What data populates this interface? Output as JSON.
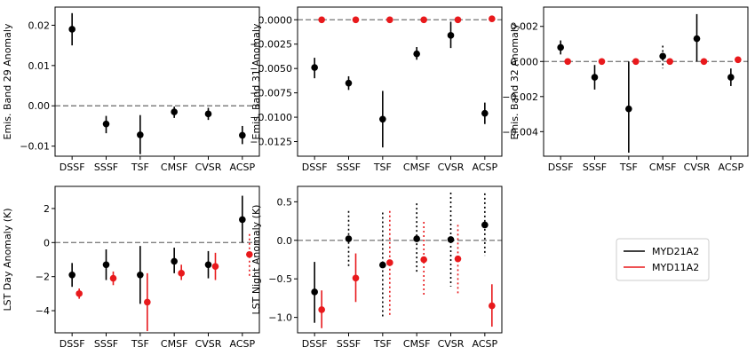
{
  "chart_data": [
    {
      "type": "scatter",
      "title": "",
      "xlabel": "",
      "ylabel": "Emis. Band 29 Anomaly",
      "categories": [
        "DSSF",
        "SSSF",
        "TSF",
        "CMSF",
        "CVSR",
        "ACSP"
      ],
      "ylim": [
        -0.0125,
        0.0245
      ],
      "yticks": [
        -0.01,
        0.0,
        0.01,
        0.02
      ],
      "ytick_labels": [
        "−0.01",
        "0.00",
        "0.01",
        "0.02"
      ],
      "zero_line": true,
      "series": [
        {
          "color": "#000000",
          "points": [
            {
              "value": 0.019,
              "low": 0.015,
              "high": 0.023,
              "dotted": false
            },
            {
              "value": -0.0045,
              "low": -0.0068,
              "high": -0.0025,
              "dotted": false
            },
            {
              "value": -0.0072,
              "low": -0.012,
              "high": -0.0023,
              "dotted": false
            },
            {
              "value": -0.0015,
              "low": -0.003,
              "high": -0.0002,
              "dotted": false
            },
            {
              "value": -0.002,
              "low": -0.0035,
              "high": -0.0005,
              "dotted": false
            },
            {
              "value": -0.0073,
              "low": -0.0095,
              "high": -0.005,
              "dotted": false
            }
          ]
        }
      ]
    },
    {
      "type": "scatter",
      "title": "",
      "xlabel": "",
      "ylabel": "Emis. Band 31 Anomaly",
      "categories": [
        "DSSF",
        "SSSF",
        "TSF",
        "CMSF",
        "CVSR",
        "ACSP"
      ],
      "ylim": [
        -0.014,
        0.0013
      ],
      "yticks": [
        0.0,
        -0.0025,
        -0.005,
        -0.0075,
        -0.01,
        -0.0125
      ],
      "ytick_labels": [
        "0.0000",
        "−0.0025",
        "−0.0050",
        "−0.0075",
        "−0.0100",
        "−0.0125"
      ],
      "zero_line": true,
      "series": [
        {
          "color": "#000000",
          "points": [
            {
              "value": -0.0049,
              "low": -0.006,
              "high": -0.0039,
              "dotted": false
            },
            {
              "value": -0.0065,
              "low": -0.0072,
              "high": -0.0058,
              "dotted": false
            },
            {
              "value": -0.0102,
              "low": -0.0131,
              "high": -0.0073,
              "dotted": false
            },
            {
              "value": -0.0035,
              "low": -0.0041,
              "high": -0.0028,
              "dotted": false
            },
            {
              "value": -0.0016,
              "low": -0.0029,
              "high": -0.0002,
              "dotted": false
            },
            {
              "value": -0.0096,
              "low": -0.0107,
              "high": -0.0085,
              "dotted": false
            }
          ]
        },
        {
          "color": "#e8191c",
          "points": [
            {
              "value": 0.0,
              "low": 0.0,
              "high": 0.0,
              "dotted": false
            },
            {
              "value": 0.0,
              "low": 0.0,
              "high": 0.0,
              "dotted": false
            },
            {
              "value": 0.0,
              "low": 0.0,
              "high": 0.0,
              "dotted": false
            },
            {
              "value": 0.0,
              "low": 0.0,
              "high": 0.0,
              "dotted": false
            },
            {
              "value": 0.0,
              "low": 0.0,
              "high": 0.0,
              "dotted": false
            },
            {
              "value": 0.0001,
              "low": 0.0001,
              "high": 0.0001,
              "dotted": false
            }
          ]
        }
      ]
    },
    {
      "type": "scatter",
      "title": "",
      "xlabel": "",
      "ylabel": "Emis. Band 32 Anomaly",
      "categories": [
        "DSSF",
        "SSSF",
        "TSF",
        "CMSF",
        "CVSR",
        "ACSP"
      ],
      "ylim": [
        -0.0054,
        0.0031
      ],
      "yticks": [
        0.002,
        0.0,
        -0.002,
        -0.004
      ],
      "ytick_labels": [
        "0.002",
        "0.000",
        "−0.002",
        "−0.004"
      ],
      "zero_line": true,
      "series": [
        {
          "color": "#000000",
          "points": [
            {
              "value": 0.0008,
              "low": 0.0004,
              "high": 0.0012,
              "dotted": false
            },
            {
              "value": -0.0009,
              "low": -0.0016,
              "high": -0.0002,
              "dotted": false
            },
            {
              "value": -0.0027,
              "low": -0.0052,
              "high": 0.0,
              "dotted": false
            },
            {
              "value": 0.0003,
              "low": -0.0004,
              "high": 0.0009,
              "dotted": true
            },
            {
              "value": 0.0013,
              "low": 0.0,
              "high": 0.0027,
              "dotted": false
            },
            {
              "value": -0.0009,
              "low": -0.0014,
              "high": -0.0004,
              "dotted": false
            }
          ]
        },
        {
          "color": "#e8191c",
          "points": [
            {
              "value": 0.0,
              "low": 0.0,
              "high": 0.0,
              "dotted": false
            },
            {
              "value": 0.0,
              "low": 0.0,
              "high": 0.0,
              "dotted": false
            },
            {
              "value": 0.0,
              "low": 0.0,
              "high": 0.0,
              "dotted": false
            },
            {
              "value": 0.0,
              "low": 0.0,
              "high": 0.0,
              "dotted": false
            },
            {
              "value": 0.0,
              "low": 0.0,
              "high": 0.0,
              "dotted": false
            },
            {
              "value": 0.0001,
              "low": 0.0001,
              "high": 0.0001,
              "dotted": false
            }
          ]
        }
      ]
    },
    {
      "type": "scatter",
      "title": "",
      "xlabel": "",
      "ylabel": "LST Day Anomaly (K)",
      "categories": [
        "DSSF",
        "SSSF",
        "TSF",
        "CMSF",
        "CVSR",
        "ACSP"
      ],
      "ylim": [
        -5.3,
        3.3
      ],
      "yticks": [
        2,
        0,
        -2,
        -4
      ],
      "ytick_labels": [
        "2",
        "0",
        "−2",
        "−4"
      ],
      "zero_line": true,
      "series": [
        {
          "color": "#000000",
          "points": [
            {
              "value": -1.9,
              "low": -2.6,
              "high": -1.2,
              "dotted": false
            },
            {
              "value": -1.3,
              "low": -2.2,
              "high": -0.4,
              "dotted": false
            },
            {
              "value": -1.9,
              "low": -3.6,
              "high": -0.2,
              "dotted": false
            },
            {
              "value": -1.1,
              "low": -1.8,
              "high": -0.3,
              "dotted": false
            },
            {
              "value": -1.3,
              "low": -2.1,
              "high": -0.5,
              "dotted": false
            },
            {
              "value": 1.35,
              "low": 0.0,
              "high": 2.75,
              "dotted": false
            }
          ]
        },
        {
          "color": "#e8191c",
          "points": [
            {
              "value": -3.0,
              "low": -3.3,
              "high": -2.7,
              "dotted": false
            },
            {
              "value": -2.1,
              "low": -2.5,
              "high": -1.7,
              "dotted": false
            },
            {
              "value": -3.5,
              "low": -5.2,
              "high": -1.8,
              "dotted": false
            },
            {
              "value": -1.8,
              "low": -2.2,
              "high": -1.3,
              "dotted": false
            },
            {
              "value": -1.4,
              "low": -2.2,
              "high": -0.6,
              "dotted": false
            },
            {
              "value": -0.7,
              "low": -2.0,
              "high": 0.5,
              "dotted": true
            }
          ]
        }
      ]
    },
    {
      "type": "scatter",
      "title": "",
      "xlabel": "",
      "ylabel": "LST Night Anomaly (K)",
      "categories": [
        "DSSF",
        "SSSF",
        "TSF",
        "CMSF",
        "CVSR",
        "ACSP"
      ],
      "ylim": [
        -1.2,
        0.7
      ],
      "yticks": [
        0.5,
        0.0,
        -0.5,
        -1.0
      ],
      "ytick_labels": [
        "0.5",
        "0.0",
        "−0.5",
        "−1.0"
      ],
      "zero_line": true,
      "series": [
        {
          "color": "#000000",
          "points": [
            {
              "value": -0.67,
              "low": -1.07,
              "high": -0.28,
              "dotted": false
            },
            {
              "value": 0.02,
              "low": -0.35,
              "high": 0.38,
              "dotted": true
            },
            {
              "value": -0.32,
              "low": -1.02,
              "high": 0.36,
              "dotted": true
            },
            {
              "value": 0.02,
              "low": -0.43,
              "high": 0.48,
              "dotted": true
            },
            {
              "value": 0.01,
              "low": -0.6,
              "high": 0.62,
              "dotted": true
            },
            {
              "value": 0.2,
              "low": -0.2,
              "high": 0.61,
              "dotted": true
            }
          ]
        },
        {
          "color": "#e8191c",
          "points": [
            {
              "value": -0.9,
              "low": -1.14,
              "high": -0.65,
              "dotted": false
            },
            {
              "value": -0.49,
              "low": -0.8,
              "high": -0.17,
              "dotted": false
            },
            {
              "value": -0.29,
              "low": -1.0,
              "high": 0.38,
              "dotted": true
            },
            {
              "value": -0.25,
              "low": -0.74,
              "high": 0.24,
              "dotted": true
            },
            {
              "value": -0.24,
              "low": -0.69,
              "high": 0.2,
              "dotted": true
            },
            {
              "value": -0.85,
              "low": -1.12,
              "high": -0.57,
              "dotted": false
            }
          ]
        }
      ]
    }
  ],
  "legend": {
    "items": [
      {
        "label": "MYD21A2",
        "color": "#000000"
      },
      {
        "label": "MYD11A2",
        "color": "#e8191c"
      }
    ]
  }
}
